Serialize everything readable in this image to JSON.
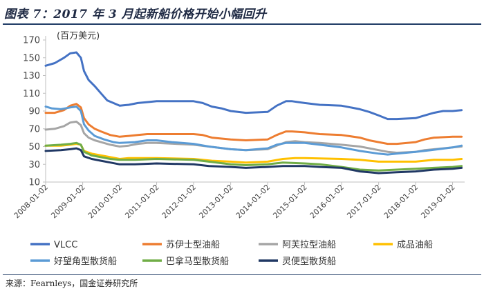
{
  "header": {
    "title": "图表 7：2017 年 3 月起新船价格开始小幅回升"
  },
  "footer": {
    "source": "来源：Fearnleys，国金证券研究所"
  },
  "chart_data": {
    "type": "line",
    "unit_label": "(百万美元)",
    "ylim": [
      10,
      170
    ],
    "yticks": [
      10,
      30,
      50,
      70,
      90,
      110,
      130,
      150,
      170
    ],
    "xlim": [
      "2008-01-02",
      "2019-05-01"
    ],
    "xticks": [
      "2008-01-02",
      "2009-01-02",
      "2010-01-02",
      "2011-01-02",
      "2012-01-02",
      "2013-01-02",
      "2014-01-02",
      "2015-01-02",
      "2016-01-02",
      "2017-01-02",
      "2018-01-02",
      "2019-01-02"
    ],
    "grid": false,
    "legend_position": "bottom",
    "series": [
      {
        "name": "VLCC",
        "color": "#4472C4",
        "points": [
          [
            "2008-01-02",
            141
          ],
          [
            "2008-04-01",
            144
          ],
          [
            "2008-07-01",
            150
          ],
          [
            "2008-09-01",
            155
          ],
          [
            "2008-11-01",
            156
          ],
          [
            "2008-12-15",
            150
          ],
          [
            "2009-01-15",
            135
          ],
          [
            "2009-03-01",
            125
          ],
          [
            "2009-05-01",
            118
          ],
          [
            "2009-07-01",
            110
          ],
          [
            "2009-09-01",
            102
          ],
          [
            "2009-11-01",
            99
          ],
          [
            "2010-01-02",
            96
          ],
          [
            "2010-04-01",
            97
          ],
          [
            "2010-07-01",
            99
          ],
          [
            "2010-10-01",
            100
          ],
          [
            "2011-01-02",
            101
          ],
          [
            "2011-06-01",
            101
          ],
          [
            "2012-01-02",
            101
          ],
          [
            "2012-04-01",
            99
          ],
          [
            "2012-07-01",
            95
          ],
          [
            "2012-10-01",
            93
          ],
          [
            "2013-01-02",
            90
          ],
          [
            "2013-06-01",
            88
          ],
          [
            "2014-01-02",
            89
          ],
          [
            "2014-04-01",
            96
          ],
          [
            "2014-07-01",
            101
          ],
          [
            "2014-09-01",
            101
          ],
          [
            "2015-01-02",
            99
          ],
          [
            "2015-06-01",
            97
          ],
          [
            "2016-01-02",
            96
          ],
          [
            "2016-04-01",
            94
          ],
          [
            "2016-07-01",
            92
          ],
          [
            "2016-10-01",
            89
          ],
          [
            "2017-01-02",
            85
          ],
          [
            "2017-04-01",
            81
          ],
          [
            "2017-07-01",
            81
          ],
          [
            "2018-01-02",
            82
          ],
          [
            "2018-04-01",
            85
          ],
          [
            "2018-07-01",
            88
          ],
          [
            "2018-10-01",
            90
          ],
          [
            "2019-01-02",
            90
          ],
          [
            "2019-04-01",
            91
          ]
        ]
      },
      {
        "name": "苏伊士型油船",
        "color": "#ED7D31",
        "points": [
          [
            "2008-01-02",
            88
          ],
          [
            "2008-04-01",
            88
          ],
          [
            "2008-07-01",
            91
          ],
          [
            "2008-09-01",
            96
          ],
          [
            "2008-11-01",
            98
          ],
          [
            "2008-12-15",
            94
          ],
          [
            "2009-01-15",
            82
          ],
          [
            "2009-03-01",
            75
          ],
          [
            "2009-05-01",
            70
          ],
          [
            "2009-07-01",
            67
          ],
          [
            "2009-10-01",
            63
          ],
          [
            "2010-01-02",
            61
          ],
          [
            "2010-04-01",
            62
          ],
          [
            "2010-07-01",
            63
          ],
          [
            "2010-10-01",
            64
          ],
          [
            "2011-01-02",
            64
          ],
          [
            "2012-01-02",
            64
          ],
          [
            "2012-04-01",
            63
          ],
          [
            "2012-07-01",
            60
          ],
          [
            "2013-01-02",
            58
          ],
          [
            "2013-06-01",
            57
          ],
          [
            "2014-01-02",
            58
          ],
          [
            "2014-04-01",
            63
          ],
          [
            "2014-07-01",
            67
          ],
          [
            "2014-09-01",
            67
          ],
          [
            "2015-01-02",
            66
          ],
          [
            "2015-06-01",
            64
          ],
          [
            "2016-01-02",
            63
          ],
          [
            "2016-07-01",
            60
          ],
          [
            "2016-10-01",
            57
          ],
          [
            "2017-01-02",
            55
          ],
          [
            "2017-04-01",
            53
          ],
          [
            "2017-07-01",
            53
          ],
          [
            "2018-01-02",
            55
          ],
          [
            "2018-04-01",
            58
          ],
          [
            "2018-07-01",
            60
          ],
          [
            "2019-01-02",
            61
          ],
          [
            "2019-04-01",
            61
          ]
        ]
      },
      {
        "name": "阿芙拉型油船",
        "color": "#A5A5A5",
        "points": [
          [
            "2008-01-02",
            69
          ],
          [
            "2008-04-01",
            70
          ],
          [
            "2008-07-01",
            73
          ],
          [
            "2008-09-01",
            77
          ],
          [
            "2008-11-01",
            78
          ],
          [
            "2008-12-15",
            74
          ],
          [
            "2009-01-15",
            65
          ],
          [
            "2009-03-01",
            60
          ],
          [
            "2009-05-01",
            57
          ],
          [
            "2009-07-01",
            55
          ],
          [
            "2009-10-01",
            52
          ],
          [
            "2010-01-02",
            50
          ],
          [
            "2010-04-01",
            51
          ],
          [
            "2010-07-01",
            53
          ],
          [
            "2010-10-01",
            54
          ],
          [
            "2011-01-02",
            54
          ],
          [
            "2012-01-02",
            52
          ],
          [
            "2012-06-01",
            50
          ],
          [
            "2013-01-02",
            47
          ],
          [
            "2013-06-01",
            46
          ],
          [
            "2014-01-02",
            47
          ],
          [
            "2014-04-01",
            51
          ],
          [
            "2014-07-01",
            55
          ],
          [
            "2014-10-01",
            56
          ],
          [
            "2015-01-02",
            55
          ],
          [
            "2015-06-01",
            54
          ],
          [
            "2016-01-02",
            52
          ],
          [
            "2016-07-01",
            50
          ],
          [
            "2017-01-02",
            46
          ],
          [
            "2017-04-01",
            44
          ],
          [
            "2017-07-01",
            43
          ],
          [
            "2018-01-02",
            44
          ],
          [
            "2018-04-01",
            46
          ],
          [
            "2018-10-01",
            48
          ],
          [
            "2019-01-02",
            49
          ],
          [
            "2019-04-01",
            50
          ]
        ]
      },
      {
        "name": "成品油船",
        "color": "#FFC000",
        "points": [
          [
            "2008-01-02",
            51
          ],
          [
            "2008-06-01",
            51
          ],
          [
            "2008-09-01",
            52
          ],
          [
            "2008-11-01",
            53
          ],
          [
            "2008-12-15",
            52
          ],
          [
            "2009-01-15",
            45
          ],
          [
            "2009-04-01",
            42
          ],
          [
            "2009-07-01",
            40
          ],
          [
            "2009-10-01",
            38
          ],
          [
            "2010-01-02",
            36
          ],
          [
            "2010-04-01",
            37
          ],
          [
            "2010-07-01",
            37
          ],
          [
            "2011-01-02",
            37
          ],
          [
            "2012-01-02",
            36
          ],
          [
            "2012-07-01",
            34
          ],
          [
            "2013-01-02",
            33
          ],
          [
            "2013-06-01",
            32
          ],
          [
            "2014-01-02",
            33
          ],
          [
            "2014-06-01",
            36
          ],
          [
            "2014-10-01",
            37
          ],
          [
            "2015-01-02",
            37
          ],
          [
            "2016-01-02",
            36
          ],
          [
            "2016-07-01",
            35
          ],
          [
            "2017-01-02",
            33
          ],
          [
            "2017-07-01",
            33
          ],
          [
            "2018-01-02",
            33
          ],
          [
            "2018-07-01",
            35
          ],
          [
            "2019-01-02",
            35
          ],
          [
            "2019-04-01",
            36
          ]
        ]
      },
      {
        "name": "好望角型散货船",
        "color": "#5B9BD5",
        "points": [
          [
            "2008-01-02",
            95
          ],
          [
            "2008-03-01",
            93
          ],
          [
            "2008-06-01",
            92
          ],
          [
            "2008-09-01",
            94
          ],
          [
            "2008-11-01",
            95
          ],
          [
            "2008-12-15",
            90
          ],
          [
            "2009-01-15",
            75
          ],
          [
            "2009-03-01",
            68
          ],
          [
            "2009-05-01",
            62
          ],
          [
            "2009-08-01",
            58
          ],
          [
            "2009-11-01",
            55
          ],
          [
            "2010-01-02",
            54
          ],
          [
            "2010-06-01",
            55
          ],
          [
            "2010-10-01",
            57
          ],
          [
            "2011-01-02",
            57
          ],
          [
            "2011-06-01",
            55
          ],
          [
            "2012-01-02",
            53
          ],
          [
            "2012-06-01",
            50
          ],
          [
            "2013-01-02",
            47
          ],
          [
            "2013-06-01",
            46
          ],
          [
            "2014-01-02",
            48
          ],
          [
            "2014-04-01",
            52
          ],
          [
            "2014-07-01",
            54
          ],
          [
            "2015-01-02",
            54
          ],
          [
            "2015-06-01",
            52
          ],
          [
            "2016-01-02",
            49
          ],
          [
            "2016-07-01",
            45
          ],
          [
            "2017-01-02",
            42
          ],
          [
            "2017-04-01",
            41
          ],
          [
            "2017-07-01",
            42
          ],
          [
            "2018-01-02",
            44
          ],
          [
            "2018-06-01",
            46
          ],
          [
            "2019-01-02",
            49
          ],
          [
            "2019-04-01",
            51
          ]
        ]
      },
      {
        "name": "巴拿马型散货船",
        "color": "#70AD47",
        "points": [
          [
            "2008-01-02",
            51
          ],
          [
            "2008-06-01",
            52
          ],
          [
            "2008-09-01",
            53
          ],
          [
            "2008-11-01",
            54
          ],
          [
            "2008-12-15",
            52
          ],
          [
            "2009-01-15",
            44
          ],
          [
            "2009-04-01",
            40
          ],
          [
            "2009-07-01",
            38
          ],
          [
            "2009-10-01",
            36
          ],
          [
            "2010-01-02",
            35
          ],
          [
            "2010-06-01",
            35
          ],
          [
            "2011-01-02",
            36
          ],
          [
            "2012-01-02",
            35
          ],
          [
            "2012-06-01",
            33
          ],
          [
            "2013-01-02",
            30
          ],
          [
            "2013-06-01",
            29
          ],
          [
            "2014-01-02",
            30
          ],
          [
            "2014-06-01",
            32
          ],
          [
            "2015-01-02",
            31
          ],
          [
            "2015-06-01",
            30
          ],
          [
            "2016-01-02",
            27
          ],
          [
            "2016-07-01",
            24
          ],
          [
            "2017-01-02",
            23
          ],
          [
            "2017-07-01",
            24
          ],
          [
            "2018-01-02",
            25
          ],
          [
            "2018-07-01",
            26
          ],
          [
            "2019-01-02",
            27
          ],
          [
            "2019-04-01",
            28
          ]
        ]
      },
      {
        "name": "灵便型散货船",
        "color": "#203864",
        "points": [
          [
            "2008-01-02",
            45
          ],
          [
            "2008-06-01",
            46
          ],
          [
            "2008-09-01",
            47
          ],
          [
            "2008-11-01",
            48
          ],
          [
            "2008-12-15",
            46
          ],
          [
            "2009-01-15",
            39
          ],
          [
            "2009-04-01",
            36
          ],
          [
            "2009-07-01",
            34
          ],
          [
            "2009-10-01",
            32
          ],
          [
            "2010-01-02",
            30
          ],
          [
            "2010-06-01",
            30
          ],
          [
            "2011-01-02",
            31
          ],
          [
            "2012-01-02",
            30
          ],
          [
            "2012-06-01",
            28
          ],
          [
            "2013-01-02",
            27
          ],
          [
            "2013-06-01",
            26
          ],
          [
            "2014-01-02",
            27
          ],
          [
            "2014-06-01",
            28
          ],
          [
            "2015-01-02",
            28
          ],
          [
            "2015-06-01",
            27
          ],
          [
            "2016-01-02",
            26
          ],
          [
            "2016-04-01",
            24
          ],
          [
            "2016-07-01",
            22
          ],
          [
            "2016-10-01",
            21
          ],
          [
            "2017-01-02",
            20
          ],
          [
            "2017-07-01",
            21
          ],
          [
            "2018-01-02",
            22
          ],
          [
            "2018-07-01",
            24
          ],
          [
            "2019-01-02",
            25
          ],
          [
            "2019-04-01",
            26
          ]
        ]
      }
    ]
  }
}
